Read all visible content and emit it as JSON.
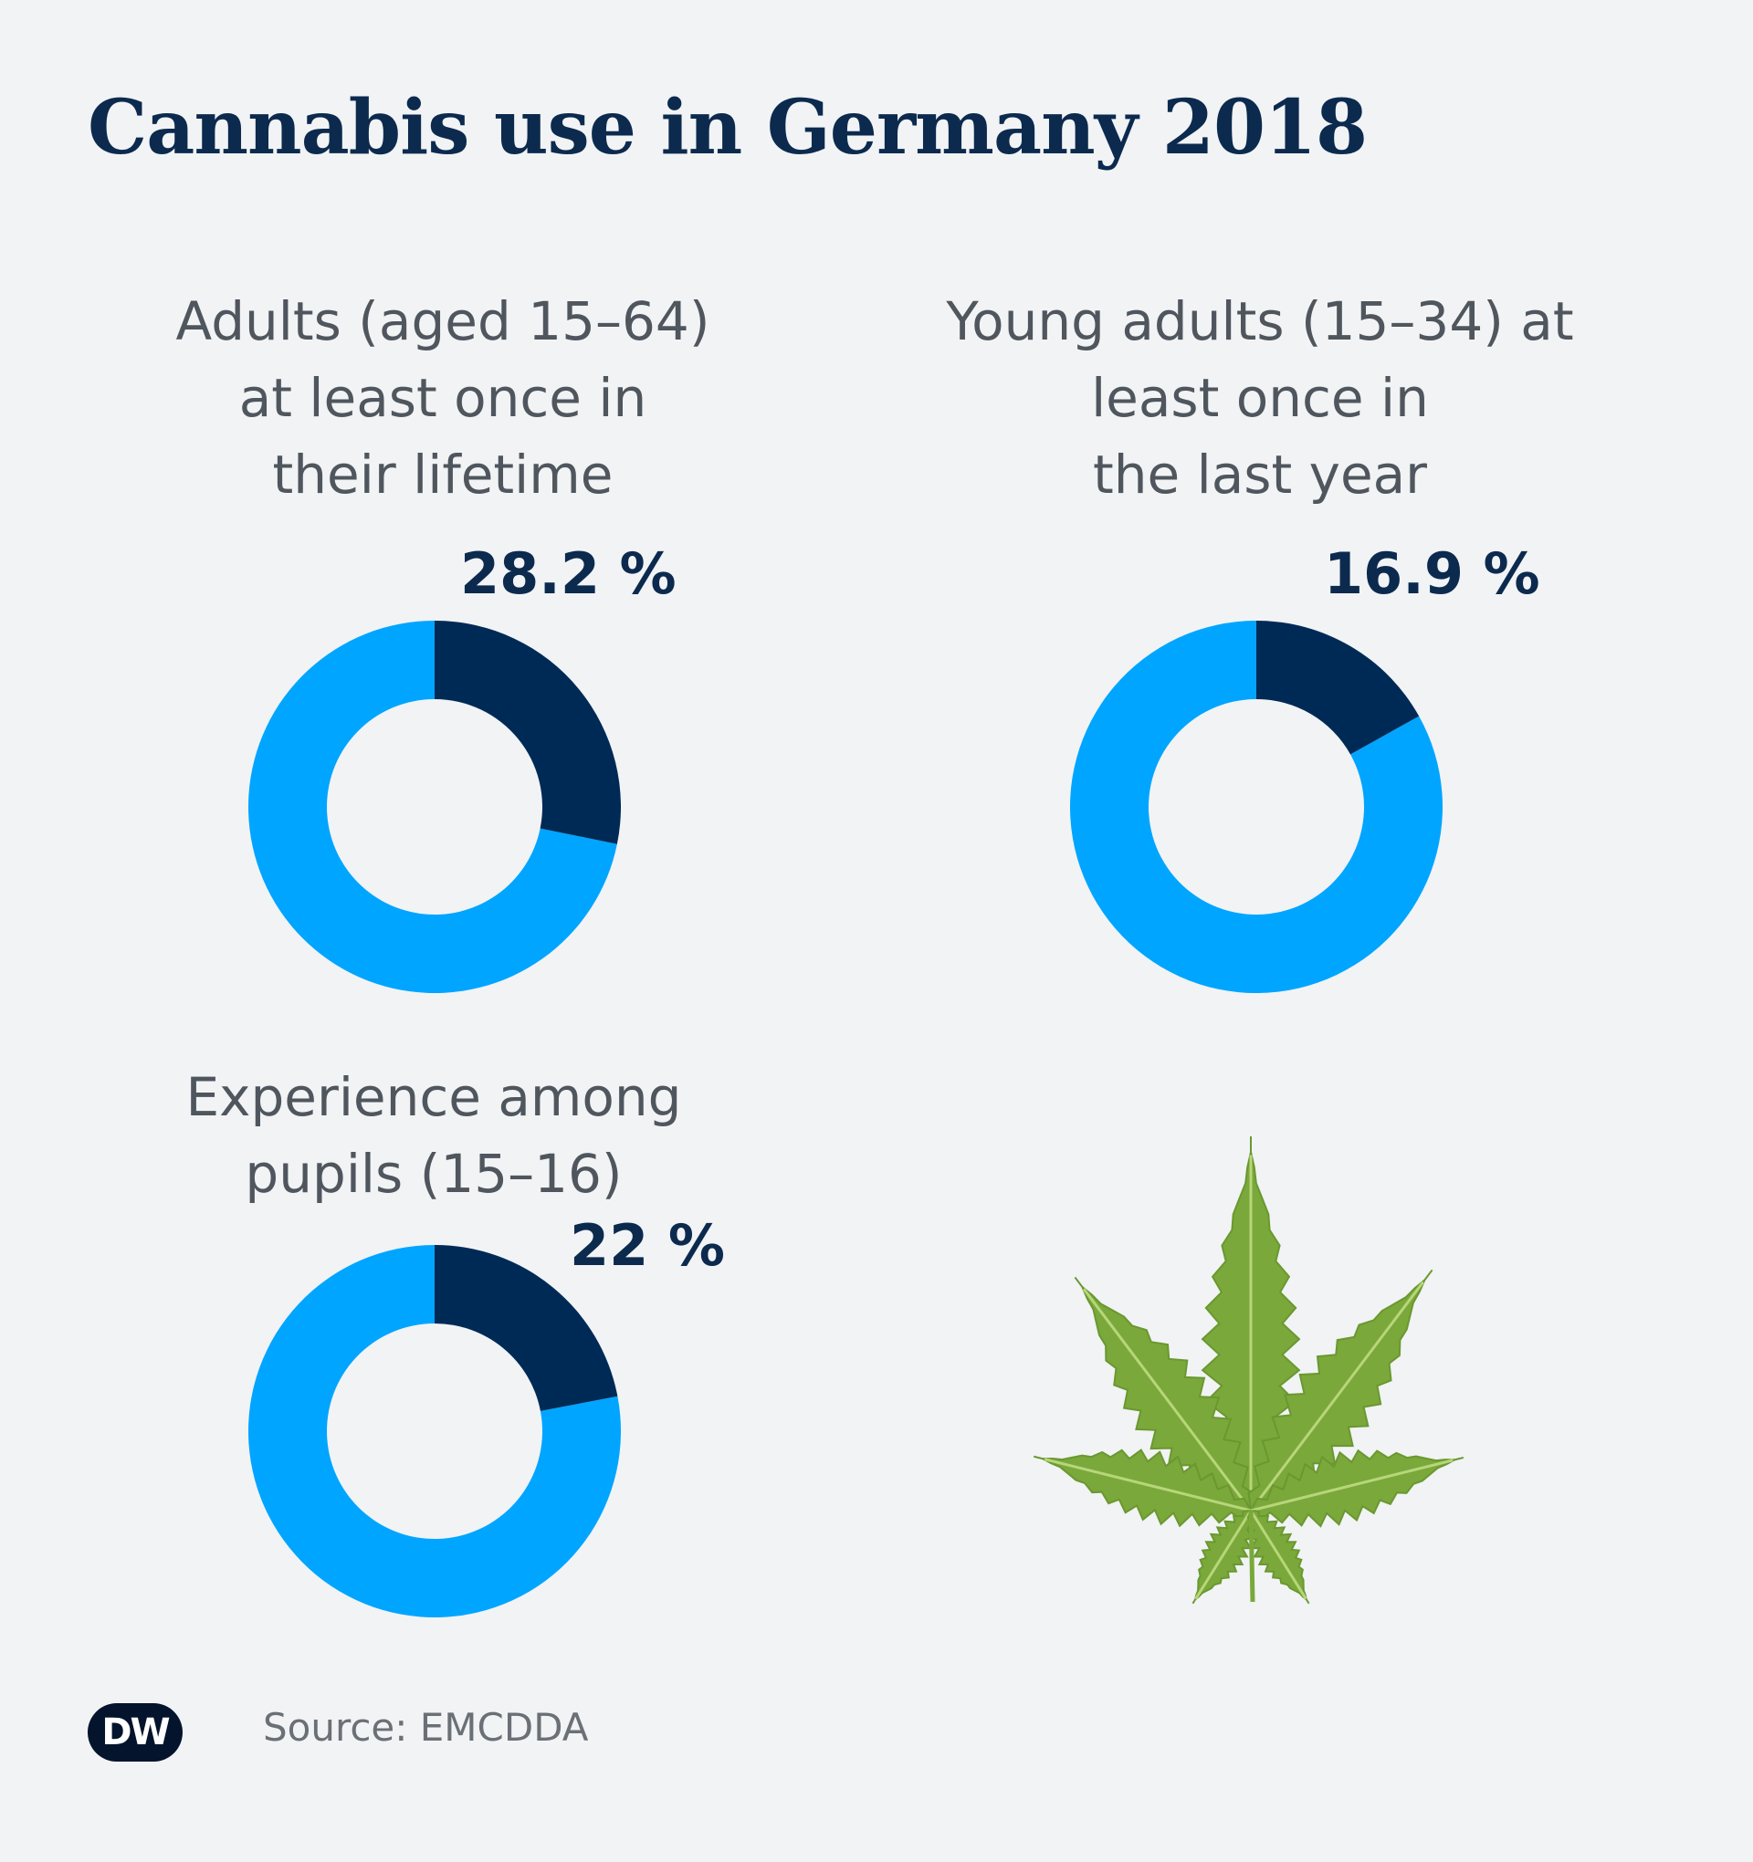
{
  "title": "Cannabis use in Germany 2018",
  "colors": {
    "share": "#002a56",
    "rest": "#00a5ff",
    "hole": "#f1f3f5",
    "leaf": "#7aa83a"
  },
  "chart_data": [
    {
      "type": "pie",
      "subtitle_lines": [
        "Adults (aged 15–64)",
        "at least once in",
        "their lifetime"
      ],
      "value_label": "28.2 %",
      "value": 28.2,
      "rest": 71.8
    },
    {
      "type": "pie",
      "subtitle_lines": [
        "Young adults (15–34) at",
        "least once in",
        "the last year"
      ],
      "value_label": "16.9 %",
      "value": 16.9,
      "rest": 83.1
    },
    {
      "type": "pie",
      "subtitle_lines": [
        "Experience among",
        "pupils (15–16)"
      ],
      "value_label": "22 %",
      "value": 22,
      "rest": 78
    }
  ],
  "footer": {
    "logo": "DW",
    "source": "Source: EMCDDA"
  },
  "decoration": {
    "icon": "cannabis-leaf-icon"
  }
}
